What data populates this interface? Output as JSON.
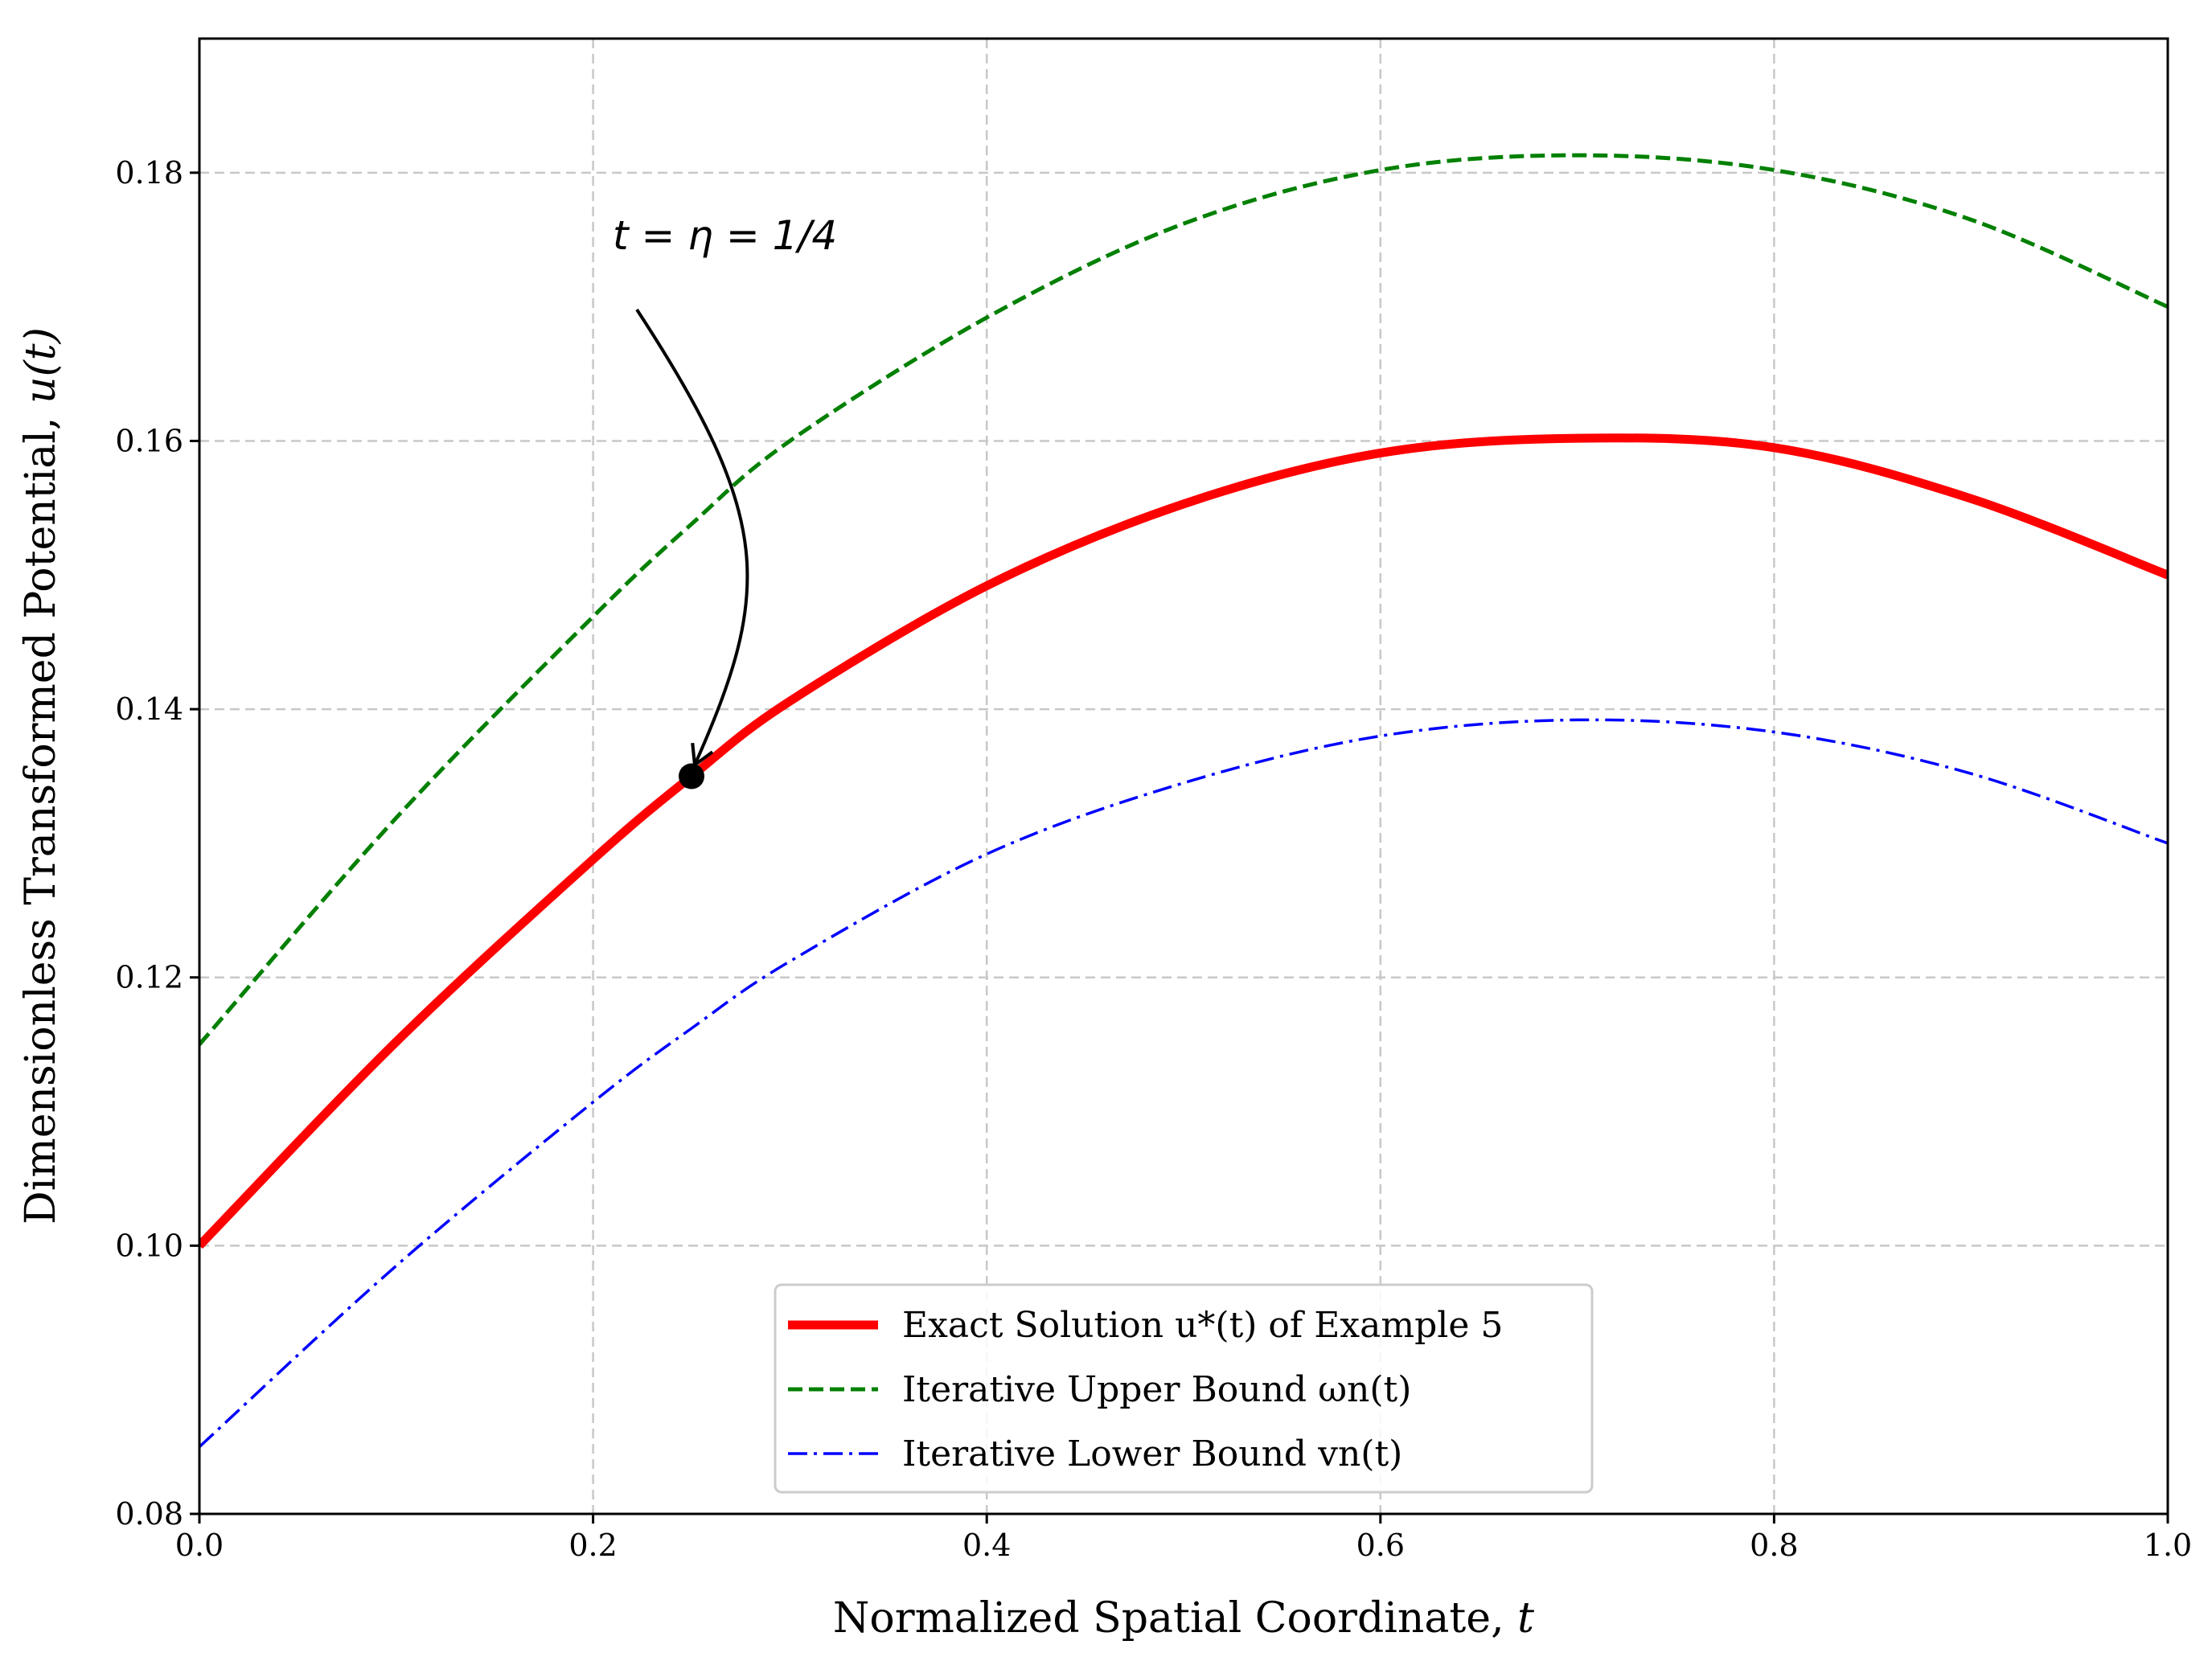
{
  "chart_data": {
    "type": "line",
    "xlabel": "Normalized Spatial Coordinate, t",
    "ylabel": "Dimensionless Transformed Potential, u(t)",
    "xlim": [
      0.0,
      1.0
    ],
    "ylim": [
      0.08,
      0.19
    ],
    "x_ticks": [
      "0.0",
      "0.2",
      "0.4",
      "0.6",
      "0.8",
      "1.0"
    ],
    "y_ticks": [
      "0.08",
      "0.10",
      "0.12",
      "0.14",
      "0.16",
      "0.18"
    ],
    "grid": true,
    "legend_position": "bottom-center",
    "x": [
      0.0,
      0.1,
      0.2,
      0.25,
      0.3,
      0.4,
      0.5,
      0.6,
      0.7,
      0.8,
      0.9,
      1.0
    ],
    "series": [
      {
        "name": "Exact Solution u*(t) of Example 5",
        "color": "#ff0000",
        "style": "solid",
        "values": [
          0.1,
          0.1152,
          0.1288,
          0.135,
          0.1406,
          0.1492,
          0.1553,
          0.1591,
          0.1602,
          0.1595,
          0.1557,
          0.15
        ]
      },
      {
        "name": "Iterative Upper Bound ωn(t)",
        "color": "#008000",
        "style": "dashed",
        "values": [
          0.115,
          0.1319,
          0.1469,
          0.1538,
          0.16,
          0.1692,
          0.1762,
          0.1802,
          0.1813,
          0.1802,
          0.1765,
          0.17
        ]
      },
      {
        "name": "Iterative Lower Bound vn(t)",
        "color": "#0000ff",
        "style": "dashdot",
        "values": [
          0.085,
          0.0985,
          0.1107,
          0.1162,
          0.1212,
          0.1292,
          0.1345,
          0.138,
          0.1392,
          0.1383,
          0.1352,
          0.13
        ]
      }
    ],
    "annotations": [
      {
        "text": "t = η = 1/4",
        "point": [
          0.25,
          0.135
        ]
      }
    ]
  },
  "labels": {
    "xlabel_main": "Normalized Spatial Coordinate, ",
    "xlabel_var": "t",
    "ylabel_main": "Dimensionless Transformed Potential, ",
    "ylabel_var": "u(t)",
    "annotation": "t = η = 1/4",
    "legend_exact": "Exact Solution u*(t) of Example 5",
    "legend_upper": "Iterative Upper Bound ωn(t)",
    "legend_lower": "Iterative Lower Bound vn(t)"
  }
}
